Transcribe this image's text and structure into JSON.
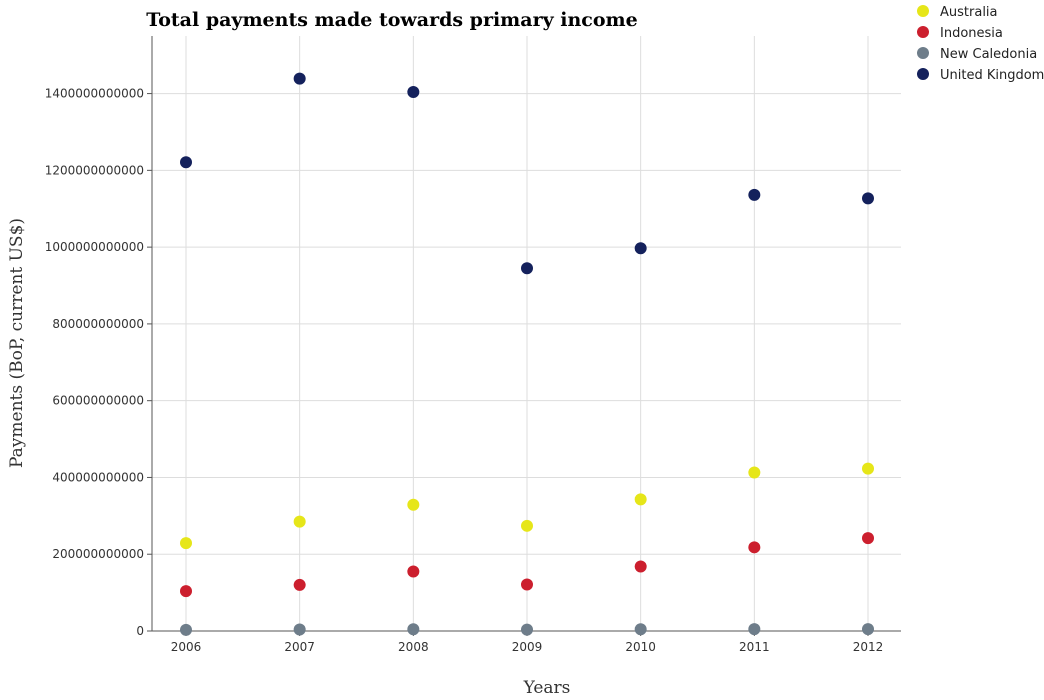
{
  "chart_data": {
    "type": "scatter",
    "title": "Total payments made towards primary income",
    "xlabel": "Years",
    "ylabel": "Payments (BoP, current US$)",
    "categories": [
      "2006",
      "2007",
      "2008",
      "2009",
      "2010",
      "2011",
      "2012"
    ],
    "ylim": [
      0,
      1550000000000
    ],
    "yticks": [
      0,
      200000000000,
      400000000000,
      600000000000,
      800000000000,
      1000000000000,
      1200000000000,
      1400000000000
    ],
    "ytick_labels": [
      "0",
      "200000000000",
      "400000000000",
      "600000000000",
      "800000000000",
      "1000000000000",
      "1200000000000",
      "1400000000000"
    ],
    "grid": true,
    "legend_position": "top-right",
    "series": [
      {
        "name": "Australia",
        "color": "#e6e619",
        "values": [
          229000000000,
          285000000000,
          329000000000,
          274000000000,
          343000000000,
          413000000000,
          423000000000
        ]
      },
      {
        "name": "Indonesia",
        "color": "#cc1f2e",
        "values": [
          104000000000,
          120000000000,
          155000000000,
          121000000000,
          168000000000,
          218000000000,
          242000000000
        ]
      },
      {
        "name": "New Caledonia",
        "color": "#6e7d8a",
        "values": [
          3000000000,
          4000000000,
          4500000000,
          3500000000,
          4500000000,
          5000000000,
          5000000000
        ]
      },
      {
        "name": "United Kingdom",
        "color": "#14215c",
        "values": [
          1221000000000,
          1439000000000,
          1404000000000,
          945000000000,
          997000000000,
          1136000000000,
          1127000000000
        ]
      }
    ]
  }
}
